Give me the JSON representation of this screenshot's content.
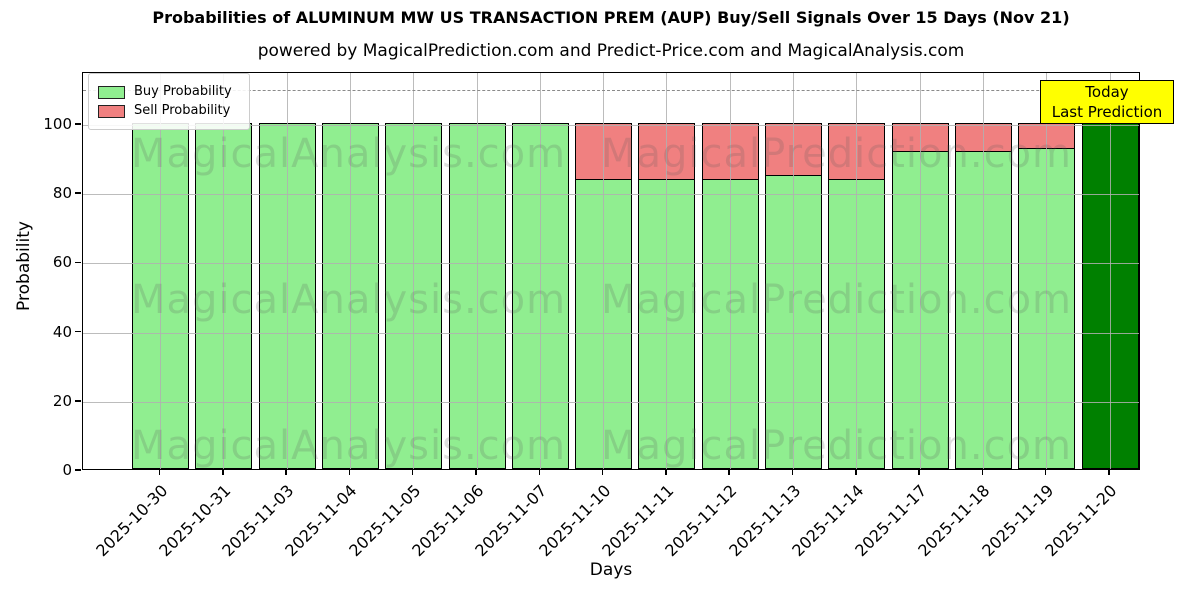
{
  "title": "Probabilities of ALUMINUM MW US TRANSACTION PREM (AUP) Buy/Sell Signals Over 15 Days (Nov 21)",
  "subtitle": "powered by MagicalPrediction.com and Predict-Price.com and MagicalAnalysis.com",
  "legend": {
    "buy_label": "Buy Probability",
    "sell_label": "Sell Probability"
  },
  "annotation": {
    "line1": "Today",
    "line2": "Last Prediction",
    "bg_color": "#ffff00"
  },
  "axes": {
    "ylabel": "Probability",
    "xlabel": "Days",
    "yticks": [
      0,
      20,
      40,
      60,
      80,
      100
    ],
    "ylim": [
      0,
      115
    ],
    "dashed_line_y": 110
  },
  "watermarks": {
    "left_text": "MagicalAnalysis.com",
    "right_text": "MagicalPrediction.com"
  },
  "colors": {
    "buy": "#90ee90",
    "sell": "#f08080",
    "today_bar": "#008000",
    "grid": "#b0b0b0",
    "bar_edge": "#000000"
  },
  "chart_data": {
    "type": "bar",
    "stacked": true,
    "title": "Probabilities of ALUMINUM MW US TRANSACTION PREM (AUP) Buy/Sell Signals Over 15 Days (Nov 21)",
    "xlabel": "Days",
    "ylabel": "Probability",
    "ylim": [
      0,
      115
    ],
    "grid": true,
    "legend_position": "upper left",
    "categories": [
      "2025-10-30",
      "2025-10-31",
      "2025-11-03",
      "2025-11-04",
      "2025-11-05",
      "2025-11-06",
      "2025-11-07",
      "2025-11-10",
      "2025-11-11",
      "2025-11-12",
      "2025-11-13",
      "2025-11-14",
      "2025-11-17",
      "2025-11-18",
      "2025-11-19",
      "2025-11-20"
    ],
    "series": [
      {
        "name": "Buy Probability",
        "color": "#90ee90",
        "values": [
          100,
          100,
          100,
          100,
          100,
          100,
          100,
          84,
          84,
          84,
          85,
          84,
          92,
          92,
          93,
          100
        ]
      },
      {
        "name": "Sell Probability",
        "color": "#f08080",
        "values": [
          0,
          0,
          0,
          0,
          0,
          0,
          0,
          16,
          16,
          16,
          15,
          16,
          8,
          8,
          7,
          0
        ]
      }
    ],
    "today_index": 15,
    "today_note": "Today / Last Prediction, bar drawn in dark green"
  }
}
